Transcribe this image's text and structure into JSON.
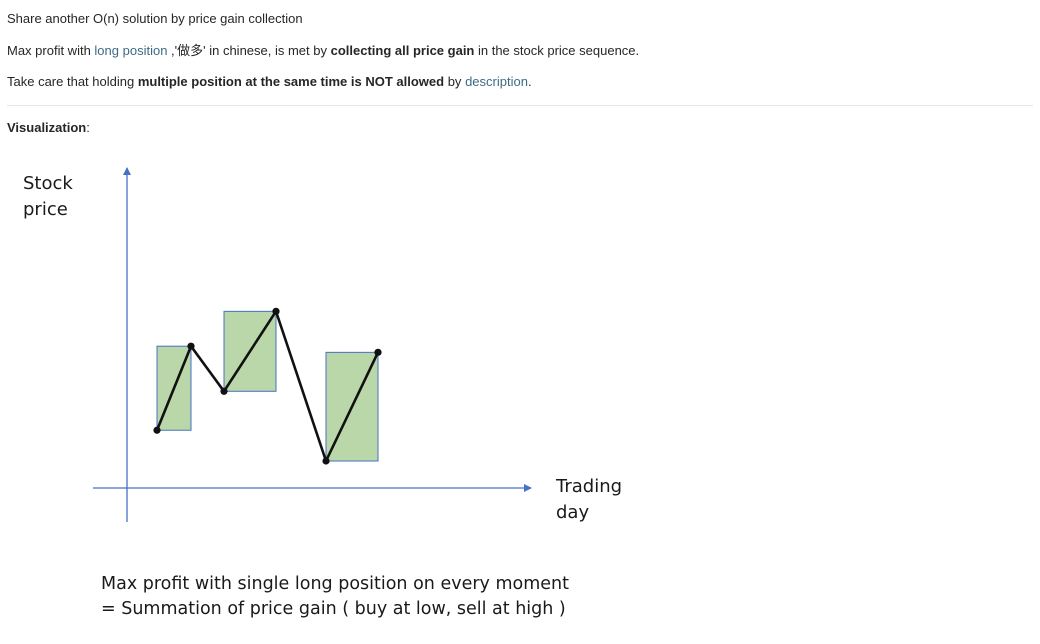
{
  "post": {
    "intro": "Share another O(n) solution by price gain collection",
    "line2": {
      "prefix": "Max profit with ",
      "link_text": "long position",
      "after_link": " ,'做多' in chinese, is met by ",
      "bold_text": "collecting all price gain",
      "suffix": " in the stock price sequence."
    },
    "line3": {
      "prefix": "Take care that holding ",
      "bold_text": "multiple position at the same time is NOT allowed",
      "middle": " by ",
      "link_text": "description",
      "suffix": "."
    },
    "viz_heading": {
      "bold_text": "Visualization",
      "suffix": ":"
    }
  },
  "figure": {
    "y_axis_label": "Stock\nprice",
    "x_axis_label": "Trading\nday",
    "caption_line1": "Max profit with single long position on every moment",
    "caption_line2": "= Summation of price gain ( buy at low, sell at high )",
    "colors": {
      "axis": "#4472c4",
      "gain_box_fill": "#b9d7a8",
      "gain_box_stroke": "#4472c4",
      "price_line": "#111111"
    }
  },
  "chart_data": {
    "type": "line",
    "title": "",
    "xlabel": "Trading day",
    "ylabel": "Stock price",
    "x": [
      1,
      2,
      3,
      4,
      5,
      6
    ],
    "series": [
      {
        "values": [
          1.5,
          5.6,
          3.4,
          7.3,
          0.0,
          5.3
        ]
      }
    ],
    "gain_segments": [
      {
        "buy_day": 1,
        "sell_day": 2
      },
      {
        "buy_day": 3,
        "sell_day": 4
      },
      {
        "buy_day": 5,
        "sell_day": 6
      }
    ],
    "xlim": [
      0,
      8
    ],
    "ylim": [
      -1,
      10
    ],
    "grid": false
  }
}
